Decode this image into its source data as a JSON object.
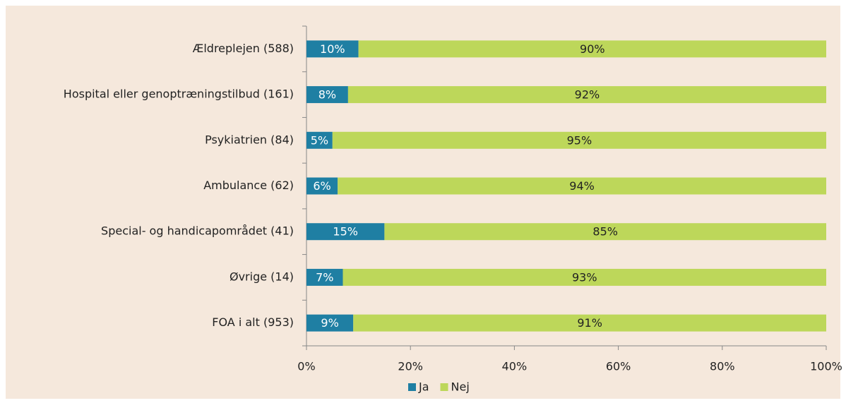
{
  "chart_data": {
    "type": "stacked-bar-horizontal",
    "categories": [
      "Ældreplejen (588)",
      "Hospital eller genoptræningstilbud (161)",
      "Psykiatrien (84)",
      "Ambulance (62)",
      "Special- og handicapområdet (41)",
      "Øvrige (14)",
      "FOA i alt (953)"
    ],
    "series": [
      {
        "name": "Ja",
        "color": "#1f7fa3",
        "values": [
          10,
          8,
          5,
          6,
          15,
          7,
          9
        ],
        "value_labels": [
          "10%",
          "8%",
          "5%",
          "6%",
          "15%",
          "7%",
          "9%"
        ]
      },
      {
        "name": "Nej",
        "color": "#bdd75a",
        "values": [
          90,
          92,
          95,
          94,
          85,
          93,
          91
        ],
        "value_labels": [
          "90%",
          "92%",
          "95%",
          "94%",
          "85%",
          "93%",
          "91%"
        ]
      }
    ],
    "xlim": [
      0,
      100
    ],
    "xticks": [
      {
        "value": 0,
        "label": "0%"
      },
      {
        "value": 20,
        "label": "20%"
      },
      {
        "value": 40,
        "label": "40%"
      },
      {
        "value": 60,
        "label": "60%"
      },
      {
        "value": 80,
        "label": "80%"
      },
      {
        "value": 100,
        "label": "100%"
      }
    ],
    "legend": "bottom"
  }
}
